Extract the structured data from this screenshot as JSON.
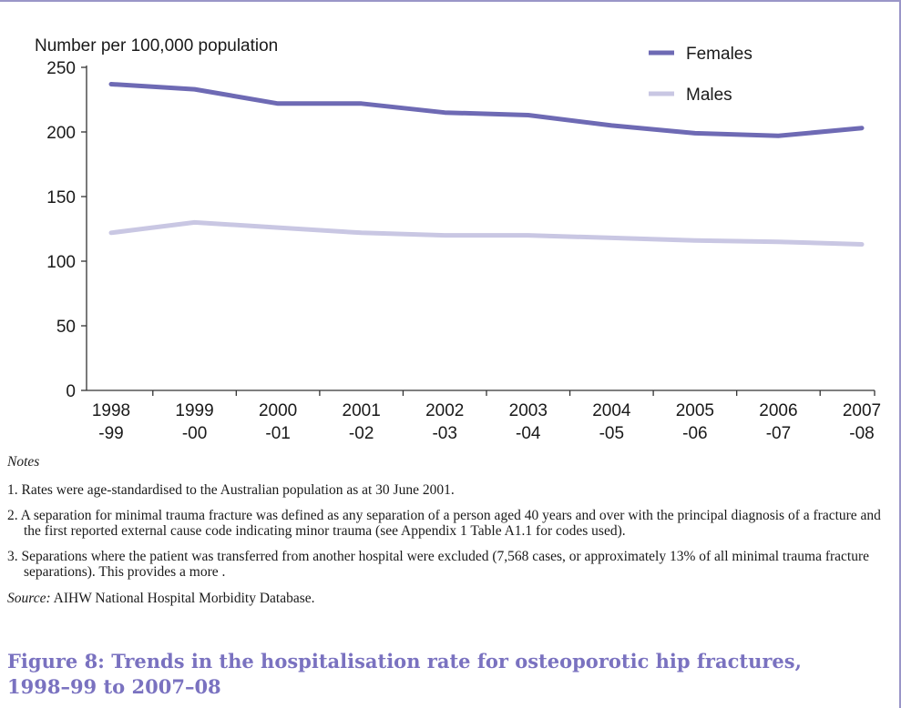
{
  "chart_data": {
    "type": "line",
    "title": "",
    "ylabel": "Number per 100,000 population",
    "xlabel": "",
    "categories": [
      [
        "1998",
        "-99"
      ],
      [
        "1999",
        "-00"
      ],
      [
        "2000",
        "-01"
      ],
      [
        "2001",
        "-02"
      ],
      [
        "2002",
        "-03"
      ],
      [
        "2003",
        "-04"
      ],
      [
        "2004",
        "-05"
      ],
      [
        "2005",
        "-06"
      ],
      [
        "2006",
        "-07"
      ],
      [
        "2007",
        "-08"
      ]
    ],
    "ylim": [
      0,
      250
    ],
    "yticks": [
      0,
      50,
      100,
      150,
      200,
      250
    ],
    "legend_position": "top-right",
    "grid": false,
    "series": [
      {
        "name": "Females",
        "color": "#6e6ab4",
        "values": [
          237,
          233,
          222,
          222,
          215,
          213,
          205,
          199,
          197,
          203
        ]
      },
      {
        "name": "Males",
        "color": "#c9c7e3",
        "values": [
          122,
          130,
          126,
          122,
          120,
          120,
          118,
          116,
          115,
          113
        ]
      }
    ]
  },
  "notes": {
    "heading": "Notes",
    "items": [
      "1. Rates were age-standardised to the Australian population as at 30 June 2001.",
      "2. A separation for minimal trauma fracture was defined as any separation of a person aged 40 years and over with the principal diagnosis of a fracture and the first reported external cause code indicating minor trauma (see Appendix 1 Table A1.1 for codes used).",
      "3. Separations where the patient was transferred from another hospital were excluded (7,568 cases, or approximately 13% of all minimal trauma fracture separations). This provides a more ."
    ],
    "source_label": "Source:",
    "source_text": " AIHW National Hospital Morbidity Database."
  },
  "caption": {
    "line1": "Figure 8: Trends in the hospitalisation rate for osteoporotic hip fractures,",
    "line2": "1998–99 to 2007–08"
  }
}
